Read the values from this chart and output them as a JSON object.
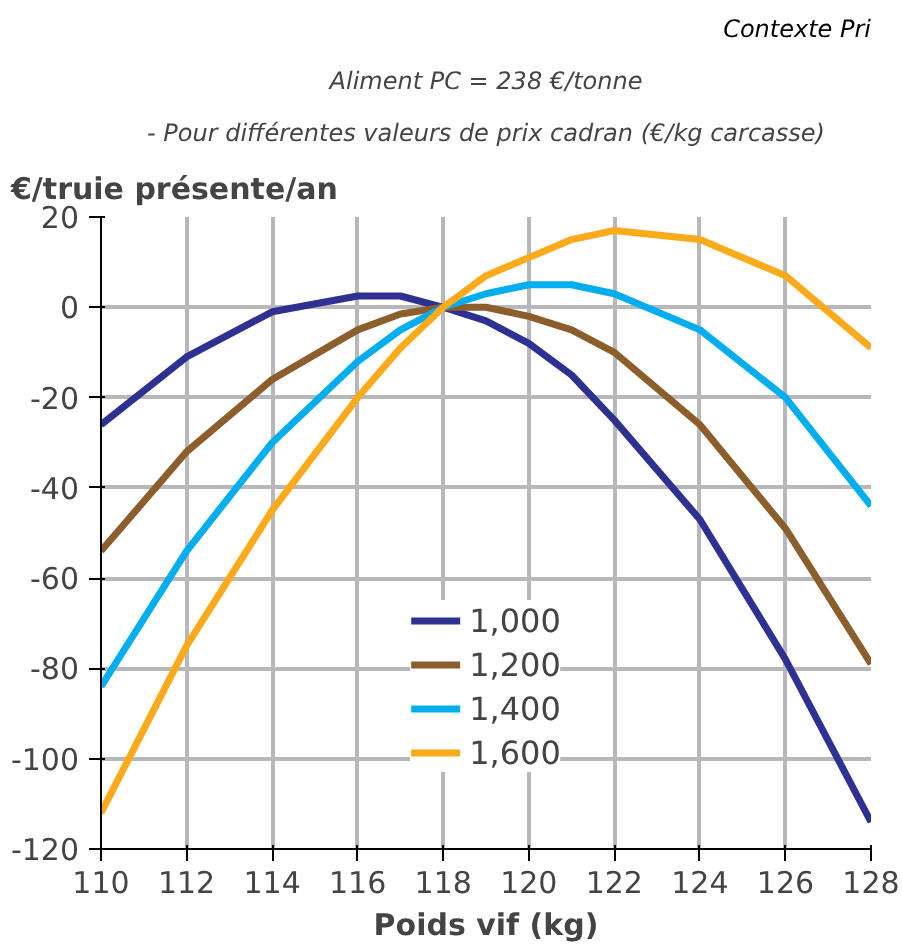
{
  "chart_data": {
    "type": "line",
    "title": "Aliment PC = 238 €/tonne",
    "subtitle": "- Pour différentes valeurs de prix cadran (€/kg carcasse)",
    "annotations": [
      "Contexte Pri"
    ],
    "ylabel": "€/truie présente/an",
    "xlabel": "Poids vif (kg)",
    "x": [
      110,
      112,
      114,
      116,
      117,
      118,
      119,
      120,
      121,
      122,
      124,
      126,
      128
    ],
    "series": [
      {
        "name": "1,000",
        "color": "#2e3192",
        "values": [
          -26,
          -11,
          -1,
          2.5,
          2.5,
          0,
          -3,
          -8,
          -15,
          -25,
          -47,
          -78,
          -114
        ]
      },
      {
        "name": "1,200",
        "color": "#8b5e2b",
        "values": [
          -54,
          -32,
          -16,
          -5,
          -1.5,
          0,
          0,
          -2,
          -5,
          -10,
          -26,
          -49,
          -79
        ]
      },
      {
        "name": "1,400",
        "color": "#00aeef",
        "values": [
          -84,
          -54,
          -30,
          -12,
          -5,
          0,
          3,
          5,
          5,
          3,
          -5,
          -20,
          -44
        ]
      },
      {
        "name": "1,600",
        "color": "#fbaa1b",
        "values": [
          -112,
          -75,
          -45,
          -20,
          -9,
          0,
          7,
          11,
          15,
          17,
          15,
          7,
          -9
        ]
      }
    ],
    "xlim": [
      110,
      128
    ],
    "xticks": [
      110,
      112,
      114,
      116,
      118,
      120,
      122,
      124,
      126,
      128
    ],
    "ylim": [
      -120,
      20
    ],
    "yticks": [
      -120,
      -100,
      -80,
      -60,
      -40,
      -20,
      0,
      20
    ],
    "grid": true,
    "legend": "bottom",
    "marker": "none",
    "line_style": "solid"
  }
}
